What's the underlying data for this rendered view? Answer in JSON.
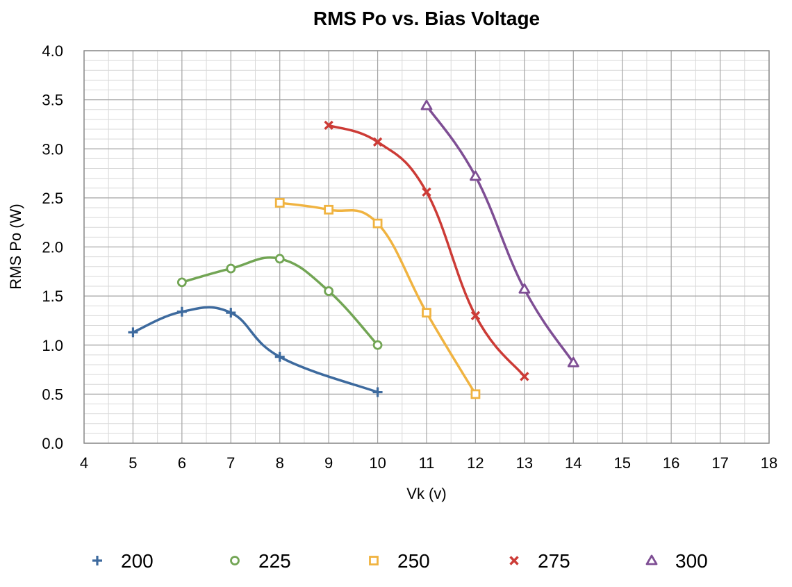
{
  "chart_data": {
    "type": "line",
    "title": "RMS Po vs. Bias Voltage",
    "xlabel": "Vk (v)",
    "ylabel": "RMS Po (W)",
    "xlim": [
      4,
      18
    ],
    "ylim": [
      0,
      4
    ],
    "x_ticks": [
      "4",
      "5",
      "6",
      "7",
      "8",
      "9",
      "10",
      "11",
      "12",
      "13",
      "14",
      "15",
      "16",
      "17",
      "18"
    ],
    "y_ticks": [
      "0.0",
      "0.5",
      "1.0",
      "1.5",
      "2.0",
      "2.5",
      "3.0",
      "3.5",
      "4.0"
    ],
    "grid": true,
    "legend_position": "bottom",
    "series": [
      {
        "name": "200",
        "color": "#3D6A9E",
        "marker": "plus",
        "points": [
          [
            5,
            1.13
          ],
          [
            6,
            1.34
          ],
          [
            7,
            1.33
          ],
          [
            8,
            0.88
          ],
          [
            10,
            0.52
          ]
        ]
      },
      {
        "name": "225",
        "color": "#72A554",
        "marker": "circle",
        "points": [
          [
            6,
            1.64
          ],
          [
            7,
            1.78
          ],
          [
            8,
            1.88
          ],
          [
            9,
            1.55
          ],
          [
            10,
            1.0
          ]
        ]
      },
      {
        "name": "250",
        "color": "#F0B340",
        "marker": "square",
        "points": [
          [
            8,
            2.45
          ],
          [
            9,
            2.38
          ],
          [
            10,
            2.24
          ],
          [
            11,
            1.33
          ],
          [
            12,
            0.5
          ]
        ]
      },
      {
        "name": "275",
        "color": "#CC3B36",
        "marker": "x",
        "points": [
          [
            9,
            3.24
          ],
          [
            10,
            3.07
          ],
          [
            11,
            2.56
          ],
          [
            12,
            1.3
          ],
          [
            13,
            0.68
          ]
        ]
      },
      {
        "name": "300",
        "color": "#7E4E94",
        "marker": "triangle",
        "points": [
          [
            11,
            3.44
          ],
          [
            12,
            2.72
          ],
          [
            13,
            1.57
          ],
          [
            14,
            0.82
          ]
        ]
      }
    ]
  }
}
